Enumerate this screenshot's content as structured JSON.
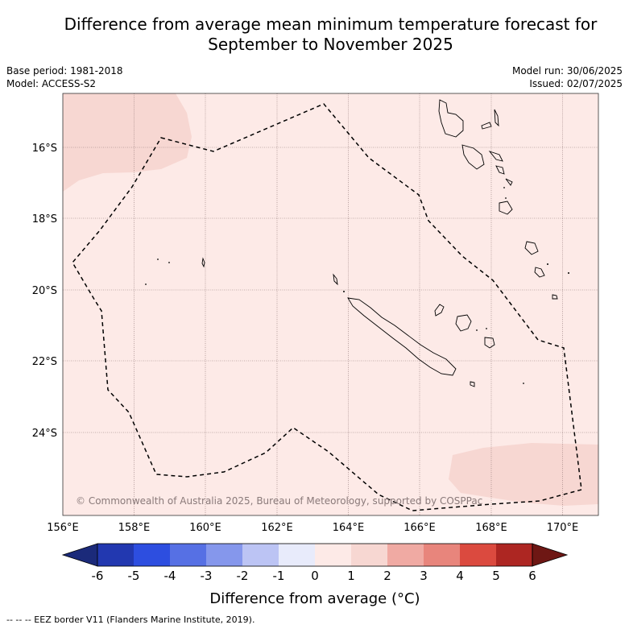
{
  "title_line1": "Difference from average mean minimum temperature forecast for",
  "title_line2": "September to November 2025",
  "base_period": "Base period: 1981-2018",
  "model": "Model: ACCESS-S2",
  "model_run": "Model run: 30/06/2025",
  "issued": "Issued: 02/07/2025",
  "copyright": "© Commonwealth of Australia 2025, Bureau of Meteorology, supported by COSPPac",
  "latitude_labels": [
    "16°S",
    "18°S",
    "20°S",
    "22°S",
    "24°S"
  ],
  "longitude_labels": [
    "156°E",
    "158°E",
    "160°E",
    "162°E",
    "164°E",
    "166°E",
    "168°E",
    "170°E"
  ],
  "colorbar": {
    "title": "Difference from average (°C)",
    "tick_labels": [
      "-6",
      "-5",
      "-4",
      "-3",
      "-2",
      "-1",
      "0",
      "1",
      "2",
      "3",
      "4",
      "5",
      "6"
    ],
    "colors": [
      "#1b2a7a",
      "#2238b0",
      "#2d4ee0",
      "#5670e4",
      "#8597ec",
      "#bcc4f4",
      "#e8ebfb",
      "#fdeae7",
      "#f7d7d2",
      "#f0aaa3",
      "#e8857c",
      "#db4a3f",
      "#ad2622",
      "#6e1714"
    ]
  },
  "map_colors": {
    "background_fill": "#fdeae7",
    "anomaly_1_2": "#f7d7d2"
  },
  "legend_note": "--  --  -- EEZ border V11 (Flanders Marine Institute, 2019)."
}
